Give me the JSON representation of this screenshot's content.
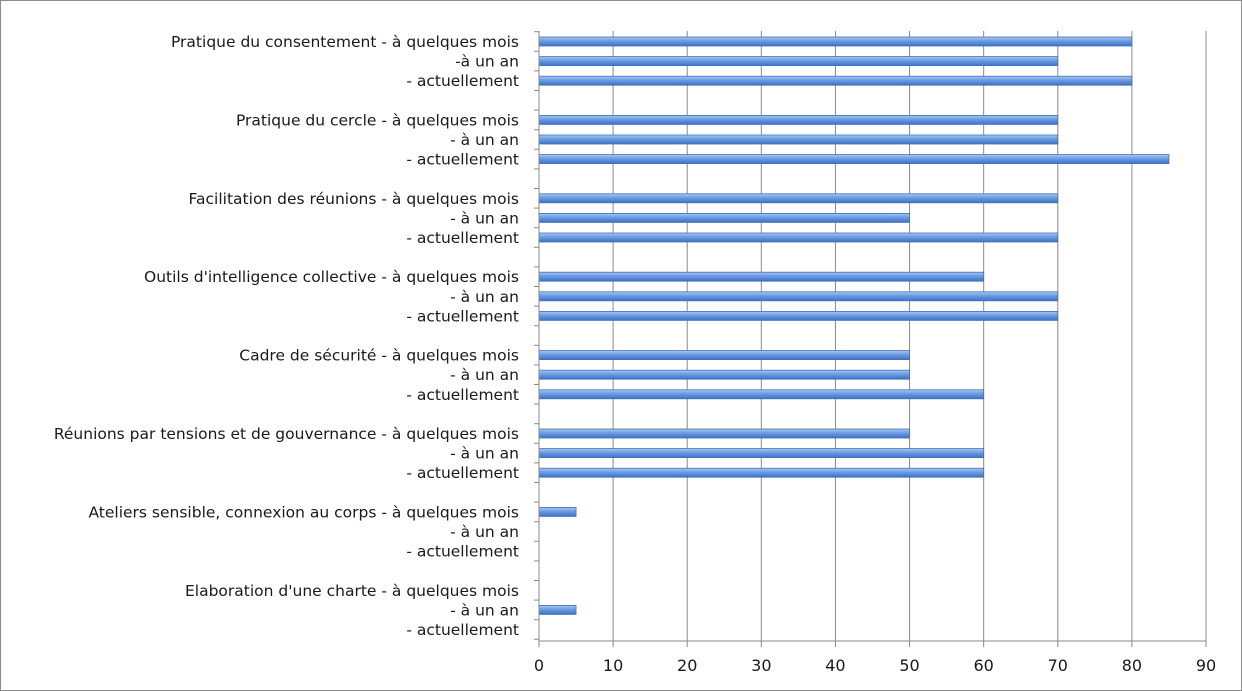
{
  "chart_data": {
    "type": "bar",
    "orientation": "horizontal",
    "categories": [
      "Pratique du consentement - à quelques mois",
      "-à un an",
      "- actuellement",
      "Pratique du cercle - à quelques mois",
      "- à un an",
      "- actuellement",
      "Facilitation des réunions - à quelques mois",
      "- à un an",
      "- actuellement",
      "Outils d'intelligence collective - à quelques mois",
      "- à un an",
      "- actuellement",
      "Cadre de sécurité - à quelques mois",
      "- à un an",
      "- actuellement",
      "Réunions par tensions et de gouvernance - à quelques mois",
      "- à un an",
      "- actuellement",
      "Ateliers sensible, connexion au corps - à quelques mois",
      "- à un an",
      "- actuellement",
      "Elaboration d'une charte - à quelques mois",
      "- à un an",
      "- actuellement"
    ],
    "values": [
      80,
      70,
      80,
      70,
      70,
      85,
      70,
      50,
      70,
      60,
      70,
      70,
      50,
      50,
      60,
      50,
      60,
      60,
      5,
      0,
      0,
      0,
      5,
      0
    ],
    "xlim": [
      0,
      90
    ],
    "xticks": [
      "0",
      "10",
      "20",
      "30",
      "40",
      "50",
      "60",
      "70",
      "80",
      "90"
    ],
    "grid": true,
    "bar_color": "#5b8fd6"
  }
}
